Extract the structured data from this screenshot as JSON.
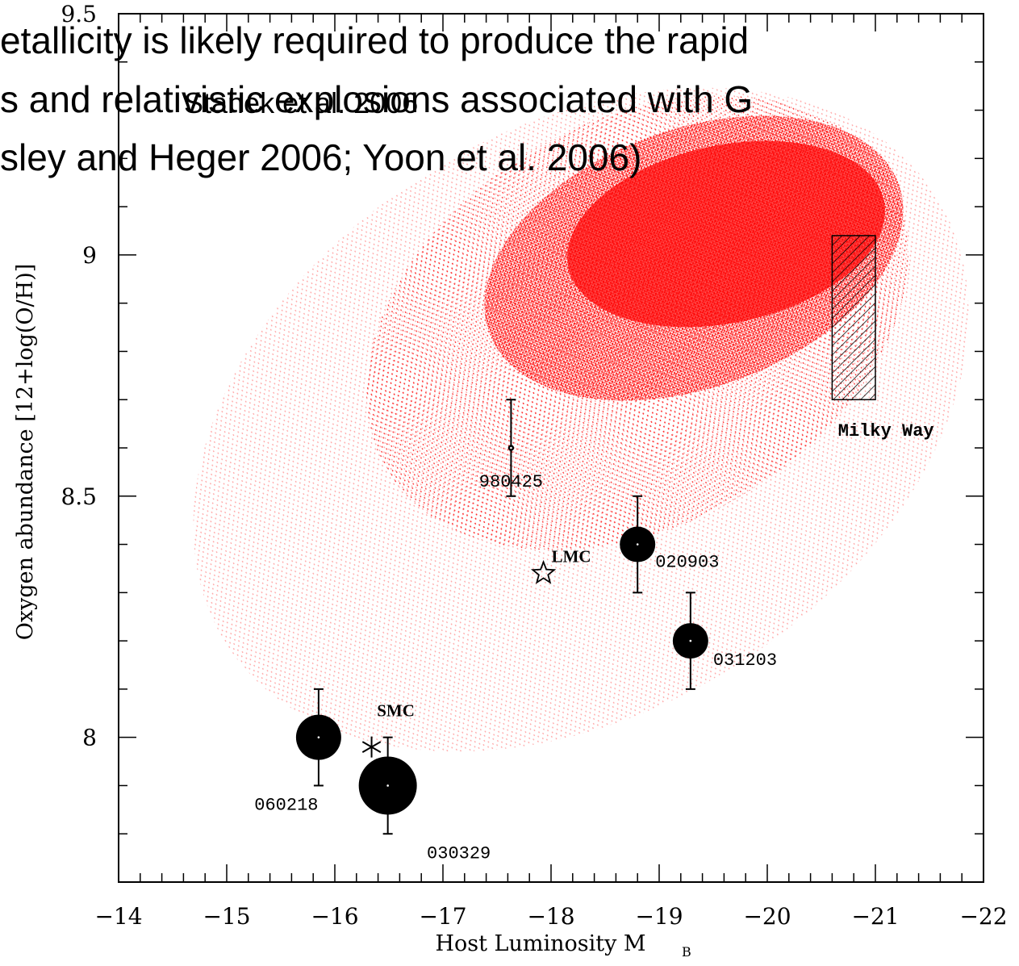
{
  "chart_data": {
    "type": "scatter",
    "x_label": "Host Luminosity M",
    "x_label_subscript": "B",
    "y_label": "Oxygen abundance [12+log(O/H)]",
    "xlim": [
      -14,
      -22
    ],
    "ylim": [
      7.7,
      9.5
    ],
    "xticks": [
      {
        "value": -14,
        "label": "−14"
      },
      {
        "value": -15,
        "label": "−15"
      },
      {
        "value": -16,
        "label": "−16"
      },
      {
        "value": -17,
        "label": "−17"
      },
      {
        "value": -18,
        "label": "−18"
      },
      {
        "value": -19,
        "label": "−19"
      },
      {
        "value": -20,
        "label": "−20"
      },
      {
        "value": -21,
        "label": "−21"
      },
      {
        "value": -22,
        "label": "−22"
      }
    ],
    "yticks": [
      8,
      8.5,
      9,
      9.5
    ],
    "xminor_ticks": [
      -14.2,
      -14.4,
      -14.6,
      -14.8,
      -15.2,
      -15.4,
      -15.6,
      -15.8,
      -16.2,
      -16.4,
      -16.6,
      -16.8,
      -17.2,
      -17.4,
      -17.6,
      -17.8,
      -18.2,
      -18.4,
      -18.6,
      -18.8,
      -19.2,
      -19.4,
      -19.6,
      -19.8,
      -20.2,
      -20.4,
      -20.6,
      -20.8,
      -21.2,
      -21.4,
      -21.6,
      -21.8
    ],
    "yminor_ticks": [
      7.8,
      7.9,
      8.1,
      8.2,
      8.3,
      8.4,
      8.6,
      8.7,
      8.8,
      8.9,
      9.1,
      9.2,
      9.3,
      9.4
    ],
    "grbs": {
      "names": [
        "060218",
        "030329",
        "980425",
        "020903",
        "031203"
      ],
      "x": [
        -15.85,
        -16.49,
        -17.63,
        -18.8,
        -19.29
      ],
      "y": [
        8.0,
        7.9,
        8.6,
        8.4,
        8.2
      ],
      "yerr": [
        0.1,
        0.1,
        0.1,
        0.1,
        0.1
      ],
      "color": "#000000"
    },
    "references": {
      "names": [
        "LMC",
        "SMC"
      ],
      "x": [
        -17.93,
        -16.34
      ],
      "y": [
        8.34,
        7.98
      ]
    },
    "milky_way": {
      "name": "Milky Way",
      "x": [
        -20.6,
        -21.0
      ],
      "y": [
        8.7,
        9.04
      ]
    },
    "cloud_color": "#ff0000",
    "citation": "Stanek et al. 2006",
    "overlay_lines": [
      "etallicity is likely required to produce the rapid",
      "s and relativistic explosions associated with G",
      "sley and Heger 2006; Yoon et al. 2006)"
    ]
  }
}
